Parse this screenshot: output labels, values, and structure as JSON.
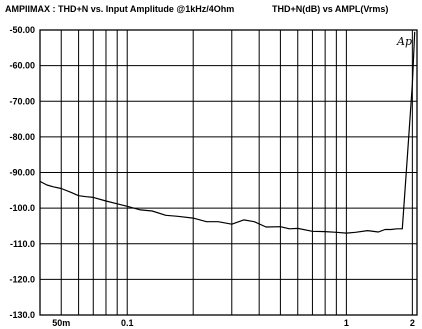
{
  "chart_data": {
    "type": "line",
    "title": "AMPIIMAX : THD+N vs. Input Amplitude @1kHz/4Ohm",
    "subtitle": "THD+N(dB)  vs  AMPL(Vrms)",
    "xscale": "log",
    "xlim": [
      0.04,
      2.1
    ],
    "ylim": [
      -130,
      -50
    ],
    "grid": true,
    "x_tick_labels": [
      {
        "value": 0.05,
        "label": "50m"
      },
      {
        "value": 0.1,
        "label": "0.1"
      },
      {
        "value": 1,
        "label": "1"
      },
      {
        "value": 2,
        "label": "2"
      }
    ],
    "y_tick_labels": [
      {
        "value": -50,
        "label": "-50.00"
      },
      {
        "value": -60,
        "label": "-60.00"
      },
      {
        "value": -70,
        "label": "-70.00"
      },
      {
        "value": -80,
        "label": "-80.00"
      },
      {
        "value": -90,
        "label": "-90.00"
      },
      {
        "value": -100,
        "label": "-100.0"
      },
      {
        "value": -110,
        "label": "-110.0"
      },
      {
        "value": -120,
        "label": "-120.0"
      },
      {
        "value": -130,
        "label": "-130.0"
      }
    ],
    "annotation": "Ap",
    "series": [
      {
        "x": [
          0.04,
          0.043,
          0.046,
          0.05,
          0.055,
          0.06,
          0.065,
          0.07,
          0.08,
          0.09,
          0.1,
          0.115,
          0.13,
          0.15,
          0.17,
          0.2,
          0.23,
          0.26,
          0.3,
          0.34,
          0.38,
          0.43,
          0.5,
          0.55,
          0.6,
          0.7,
          0.8,
          0.9,
          1.0,
          1.1,
          1.25,
          1.4,
          1.5,
          1.6,
          1.7,
          1.8,
          1.9,
          2.0,
          2.05
        ],
        "y": [
          -92.5,
          -93.5,
          -94.0,
          -94.5,
          -95.5,
          -96.5,
          -96.8,
          -97.0,
          -98.0,
          -98.8,
          -99.5,
          -100.5,
          -100.8,
          -102.0,
          -102.3,
          -102.8,
          -103.8,
          -103.8,
          -104.5,
          -103.3,
          -103.8,
          -105.3,
          -105.2,
          -105.8,
          -105.7,
          -106.5,
          -106.6,
          -106.8,
          -107.0,
          -106.8,
          -106.3,
          -106.7,
          -106.0,
          -106.0,
          -105.8,
          -105.8,
          -85.0,
          -65.0,
          -50.5
        ]
      }
    ]
  }
}
